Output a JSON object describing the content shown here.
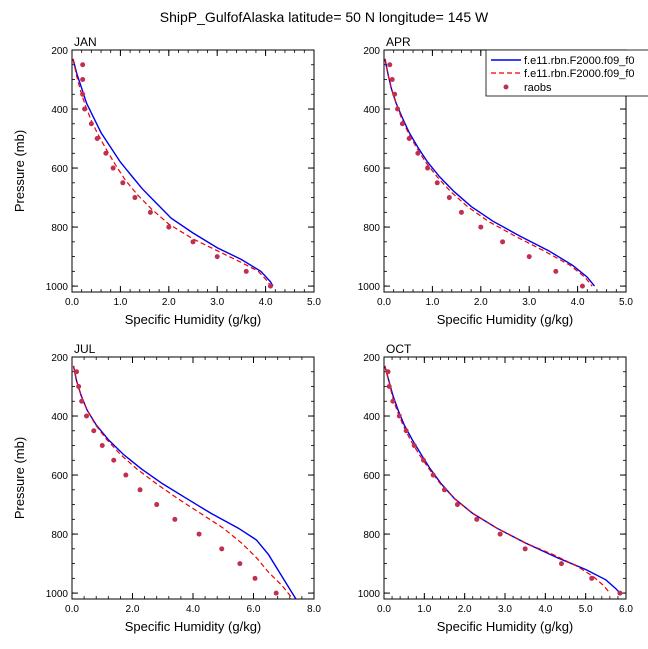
{
  "figure": {
    "title": "ShipP_GulfofAlaska  latitude= 50 N longitude= 145 W"
  },
  "legend": {
    "entries": [
      {
        "label": "f.e11.rbn.F2000.f09_f0",
        "color": "#0000ee",
        "style": "solid"
      },
      {
        "label": "f.e11.rbn.F2000.f09_f0",
        "color": "#ee0000",
        "style": "dashed"
      },
      {
        "label": "raobs",
        "color": "#c03050",
        "style": "dots"
      }
    ]
  },
  "chart_data": [
    {
      "type": "line",
      "panel_title": "JAN",
      "xlabel": "Specific Humidity (g/kg)",
      "ylabel": "Pressure (mb)",
      "xlim": [
        0,
        5
      ],
      "ylim": [
        1020,
        200
      ],
      "xticks": [
        0,
        1,
        2,
        3,
        4,
        5
      ],
      "xtick_labels": [
        "0.0",
        "1.0",
        "2.0",
        "3.0",
        "4.0",
        "5.0"
      ],
      "yticks": [
        200,
        400,
        600,
        800,
        1000
      ],
      "ytick_labels": [
        "200",
        "400",
        "600",
        "800",
        "1000"
      ],
      "series": [
        {
          "style": "solid",
          "color": "#0000ee",
          "points": [
            [
              0.02,
              230
            ],
            [
              0.1,
              280
            ],
            [
              0.2,
              330
            ],
            [
              0.3,
              380
            ],
            [
              0.45,
              430
            ],
            [
              0.6,
              480
            ],
            [
              0.8,
              530
            ],
            [
              1.0,
              580
            ],
            [
              1.2,
              620
            ],
            [
              1.45,
              670
            ],
            [
              1.75,
              720
            ],
            [
              2.05,
              770
            ],
            [
              2.5,
              820
            ],
            [
              3.0,
              870
            ],
            [
              3.5,
              910
            ],
            [
              3.9,
              950
            ],
            [
              4.1,
              985
            ],
            [
              4.15,
              1000
            ]
          ]
        },
        {
          "style": "dashed",
          "color": "#ee0000",
          "points": [
            [
              0.02,
              230
            ],
            [
              0.1,
              290
            ],
            [
              0.18,
              340
            ],
            [
              0.28,
              390
            ],
            [
              0.4,
              440
            ],
            [
              0.55,
              490
            ],
            [
              0.72,
              540
            ],
            [
              0.9,
              590
            ],
            [
              1.1,
              640
            ],
            [
              1.35,
              690
            ],
            [
              1.65,
              740
            ],
            [
              2.0,
              790
            ],
            [
              2.5,
              840
            ],
            [
              3.0,
              880
            ],
            [
              3.5,
              920
            ],
            [
              3.85,
              950
            ],
            [
              4.05,
              985
            ],
            [
              4.1,
              1000
            ]
          ]
        },
        {
          "style": "dots",
          "color": "#c03050",
          "points": [
            [
              0.22,
              250
            ],
            [
              0.22,
              300
            ],
            [
              0.22,
              350
            ],
            [
              0.26,
              400
            ],
            [
              0.4,
              450
            ],
            [
              0.52,
              500
            ],
            [
              0.7,
              550
            ],
            [
              0.85,
              600
            ],
            [
              1.05,
              650
            ],
            [
              1.3,
              700
            ],
            [
              1.62,
              750
            ],
            [
              2.0,
              800
            ],
            [
              2.5,
              850
            ],
            [
              3.0,
              900
            ],
            [
              3.6,
              950
            ],
            [
              4.1,
              1000
            ]
          ]
        }
      ]
    },
    {
      "type": "line",
      "panel_title": "APR",
      "xlabel": "Specific Humidity (g/kg)",
      "ylabel": "",
      "xlim": [
        0,
        5
      ],
      "ylim": [
        1020,
        200
      ],
      "xticks": [
        0,
        1,
        2,
        3,
        4,
        5
      ],
      "xtick_labels": [
        "0.0",
        "1.0",
        "2.0",
        "3.0",
        "4.0",
        "5.0"
      ],
      "yticks": [
        200,
        400,
        600,
        800,
        1000
      ],
      "ytick_labels": [
        "200",
        "400",
        "600",
        "800",
        "1000"
      ],
      "series": [
        {
          "style": "solid",
          "color": "#0000ee",
          "points": [
            [
              0.02,
              230
            ],
            [
              0.08,
              280
            ],
            [
              0.15,
              330
            ],
            [
              0.25,
              380
            ],
            [
              0.38,
              430
            ],
            [
              0.52,
              480
            ],
            [
              0.7,
              530
            ],
            [
              0.9,
              580
            ],
            [
              1.15,
              630
            ],
            [
              1.45,
              680
            ],
            [
              1.8,
              730
            ],
            [
              2.25,
              780
            ],
            [
              2.8,
              830
            ],
            [
              3.4,
              880
            ],
            [
              3.9,
              930
            ],
            [
              4.2,
              970
            ],
            [
              4.35,
              1000
            ]
          ]
        },
        {
          "style": "dashed",
          "color": "#ee0000",
          "points": [
            [
              0.02,
              230
            ],
            [
              0.08,
              280
            ],
            [
              0.15,
              330
            ],
            [
              0.25,
              380
            ],
            [
              0.36,
              430
            ],
            [
              0.5,
              480
            ],
            [
              0.67,
              530
            ],
            [
              0.86,
              580
            ],
            [
              1.1,
              630
            ],
            [
              1.38,
              680
            ],
            [
              1.72,
              730
            ],
            [
              2.15,
              780
            ],
            [
              2.7,
              830
            ],
            [
              3.3,
              880
            ],
            [
              3.85,
              930
            ],
            [
              4.15,
              970
            ],
            [
              4.3,
              1000
            ]
          ]
        },
        {
          "style": "dots",
          "color": "#c03050",
          "points": [
            [
              0.12,
              250
            ],
            [
              0.17,
              300
            ],
            [
              0.22,
              350
            ],
            [
              0.28,
              400
            ],
            [
              0.38,
              450
            ],
            [
              0.52,
              500
            ],
            [
              0.7,
              550
            ],
            [
              0.9,
              600
            ],
            [
              1.1,
              650
            ],
            [
              1.35,
              700
            ],
            [
              1.6,
              750
            ],
            [
              2.0,
              800
            ],
            [
              2.45,
              850
            ],
            [
              3.0,
              900
            ],
            [
              3.55,
              950
            ],
            [
              4.1,
              1000
            ]
          ]
        }
      ]
    },
    {
      "type": "line",
      "panel_title": "JUL",
      "xlabel": "Specific Humidity (g/kg)",
      "ylabel": "Pressure (mb)",
      "xlim": [
        0,
        8
      ],
      "ylim": [
        1020,
        200
      ],
      "xticks": [
        0,
        2,
        4,
        6,
        8
      ],
      "xtick_labels": [
        "0.0",
        "2.0",
        "4.0",
        "6.0",
        "8.0"
      ],
      "yticks": [
        200,
        400,
        600,
        800,
        1000
      ],
      "ytick_labels": [
        "200",
        "400",
        "600",
        "800",
        "1000"
      ],
      "series": [
        {
          "style": "solid",
          "color": "#0000ee",
          "points": [
            [
              0.05,
              230
            ],
            [
              0.15,
              280
            ],
            [
              0.3,
              330
            ],
            [
              0.5,
              380
            ],
            [
              0.8,
              430
            ],
            [
              1.2,
              480
            ],
            [
              1.7,
              530
            ],
            [
              2.3,
              580
            ],
            [
              3.0,
              630
            ],
            [
              3.8,
              680
            ],
            [
              4.6,
              730
            ],
            [
              5.5,
              780
            ],
            [
              6.1,
              820
            ],
            [
              6.5,
              870
            ],
            [
              6.8,
              920
            ],
            [
              7.1,
              970
            ],
            [
              7.4,
              1020
            ]
          ]
        },
        {
          "style": "dashed",
          "color": "#ee0000",
          "points": [
            [
              0.05,
              230
            ],
            [
              0.15,
              280
            ],
            [
              0.3,
              330
            ],
            [
              0.5,
              380
            ],
            [
              0.78,
              430
            ],
            [
              1.15,
              480
            ],
            [
              1.6,
              530
            ],
            [
              2.15,
              580
            ],
            [
              2.8,
              630
            ],
            [
              3.5,
              680
            ],
            [
              4.25,
              730
            ],
            [
              5.0,
              780
            ],
            [
              5.6,
              830
            ],
            [
              6.1,
              880
            ],
            [
              6.5,
              930
            ],
            [
              6.95,
              975
            ],
            [
              7.3,
              1020
            ]
          ]
        },
        {
          "style": "dots",
          "color": "#c03050",
          "points": [
            [
              0.15,
              250
            ],
            [
              0.22,
              300
            ],
            [
              0.32,
              350
            ],
            [
              0.48,
              400
            ],
            [
              0.72,
              450
            ],
            [
              1.0,
              500
            ],
            [
              1.38,
              550
            ],
            [
              1.78,
              600
            ],
            [
              2.25,
              650
            ],
            [
              2.8,
              700
            ],
            [
              3.4,
              750
            ],
            [
              4.2,
              800
            ],
            [
              4.95,
              850
            ],
            [
              5.55,
              900
            ],
            [
              6.05,
              950
            ],
            [
              6.75,
              1000
            ]
          ]
        }
      ]
    },
    {
      "type": "line",
      "panel_title": "OCT",
      "xlabel": "Specific Humidity (g/kg)",
      "ylabel": "",
      "xlim": [
        0,
        6
      ],
      "ylim": [
        1020,
        200
      ],
      "xticks": [
        0,
        1,
        2,
        3,
        4,
        5,
        6
      ],
      "xtick_labels": [
        "0.0",
        "1.0",
        "2.0",
        "3.0",
        "4.0",
        "5.0",
        "6.0"
      ],
      "yticks": [
        200,
        400,
        600,
        800,
        1000
      ],
      "ytick_labels": [
        "200",
        "400",
        "600",
        "800",
        "1000"
      ],
      "series": [
        {
          "style": "solid",
          "color": "#0000ee",
          "points": [
            [
              0.02,
              230
            ],
            [
              0.12,
              280
            ],
            [
              0.22,
              330
            ],
            [
              0.35,
              380
            ],
            [
              0.5,
              430
            ],
            [
              0.7,
              480
            ],
            [
              0.92,
              530
            ],
            [
              1.15,
              580
            ],
            [
              1.42,
              630
            ],
            [
              1.75,
              680
            ],
            [
              2.2,
              730
            ],
            [
              2.8,
              780
            ],
            [
              3.5,
              830
            ],
            [
              4.3,
              880
            ],
            [
              5.0,
              920
            ],
            [
              5.5,
              955
            ],
            [
              5.75,
              985
            ],
            [
              5.85,
              1000
            ]
          ]
        },
        {
          "style": "dashed",
          "color": "#ee0000",
          "points": [
            [
              0.02,
              230
            ],
            [
              0.12,
              280
            ],
            [
              0.2,
              330
            ],
            [
              0.32,
              380
            ],
            [
              0.47,
              430
            ],
            [
              0.65,
              480
            ],
            [
              0.87,
              530
            ],
            [
              1.12,
              580
            ],
            [
              1.4,
              630
            ],
            [
              1.75,
              680
            ],
            [
              2.2,
              730
            ],
            [
              2.8,
              780
            ],
            [
              3.5,
              830
            ],
            [
              4.2,
              870
            ],
            [
              4.8,
              910
            ],
            [
              5.2,
              945
            ],
            [
              5.45,
              975
            ],
            [
              5.6,
              1000
            ]
          ]
        },
        {
          "style": "dots",
          "color": "#c03050",
          "points": [
            [
              0.1,
              250
            ],
            [
              0.13,
              300
            ],
            [
              0.22,
              350
            ],
            [
              0.38,
              400
            ],
            [
              0.55,
              450
            ],
            [
              0.75,
              500
            ],
            [
              0.98,
              550
            ],
            [
              1.22,
              600
            ],
            [
              1.5,
              650
            ],
            [
              1.82,
              700
            ],
            [
              2.3,
              750
            ],
            [
              2.88,
              800
            ],
            [
              3.5,
              850
            ],
            [
              4.4,
              900
            ],
            [
              5.15,
              950
            ],
            [
              5.85,
              1000
            ]
          ]
        }
      ]
    }
  ]
}
